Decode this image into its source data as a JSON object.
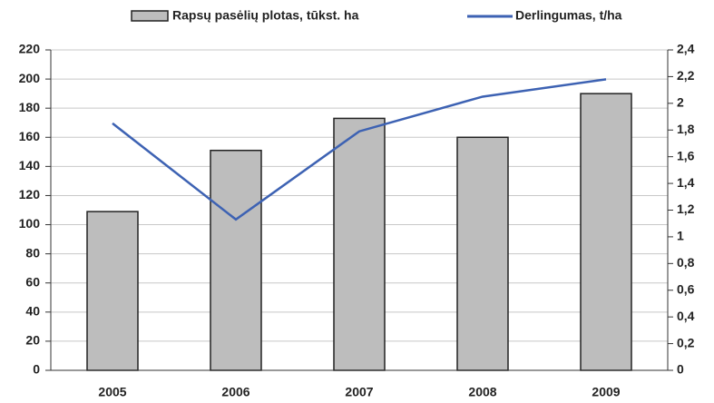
{
  "chart_data": {
    "type": "bar",
    "categories": [
      "2005",
      "2006",
      "2007",
      "2008",
      "2009"
    ],
    "series": [
      {
        "name": "Rapsų pasėlių plotas, tūkst. ha",
        "type": "bar",
        "color": "#bdbdbd",
        "values": [
          109,
          151,
          173,
          160,
          190
        ]
      },
      {
        "name": "Derlingumas, t/ha",
        "type": "line",
        "color": "#3d62b3",
        "axis": "y2",
        "values": [
          1.85,
          1.13,
          1.79,
          2.05,
          2.18
        ]
      }
    ],
    "ylim": [
      0,
      220
    ],
    "yticks": [
      0,
      20,
      40,
      60,
      80,
      100,
      120,
      140,
      160,
      180,
      200,
      220
    ],
    "y2lim": [
      0,
      2.4
    ],
    "y2ticks": [
      0,
      {
        "value": 0.2,
        "label": "0,2"
      },
      {
        "value": 0.4,
        "label": "0,4"
      },
      {
        "value": 0.6,
        "label": "0,6"
      },
      {
        "value": 0.8,
        "label": "0,8"
      },
      1,
      {
        "value": 1.2,
        "label": "1,2"
      },
      {
        "value": 1.4,
        "label": "1,4"
      },
      {
        "value": 1.6,
        "label": "1,6"
      },
      {
        "value": 1.8,
        "label": "1,8"
      },
      2,
      {
        "value": 2.2,
        "label": "2,2"
      },
      {
        "value": 2.4,
        "label": "2,4"
      }
    ],
    "grid": true,
    "legend": "top"
  }
}
